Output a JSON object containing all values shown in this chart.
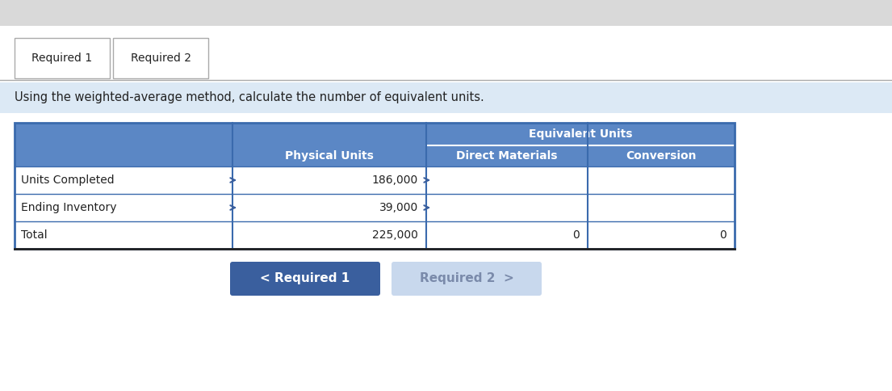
{
  "tab1_label": "Required 1",
  "tab2_label": "Required 2",
  "instruction": "Using the weighted-average method, calculate the number of equivalent units.",
  "col_headers": [
    "",
    "Physical Units",
    "Direct Materials",
    "Conversion"
  ],
  "col_subheader": "Equivalent Units",
  "rows": [
    [
      "Units Completed",
      "186,000",
      "",
      ""
    ],
    [
      "Ending Inventory",
      "39,000",
      "",
      ""
    ],
    [
      "Total",
      "225,000",
      "0",
      "0"
    ]
  ],
  "btn1_label": "< Required 1",
  "btn2_label": "Required 2  >",
  "bg_top": "#d9d9d9",
  "bg_page": "#ffffff",
  "bg_instruction": "#dce9f5",
  "tab_border": "#aaaaaa",
  "tab_active_bg": "#ffffff",
  "tab_inactive_bg": "#eeeeee",
  "table_header_bg": "#5b87c5",
  "table_header_text": "#ffffff",
  "table_border": "#3a6aad",
  "table_row_bg": "#ffffff",
  "table_total_border": "#222222",
  "btn1_bg": "#3a5f9e",
  "btn1_text": "#ffffff",
  "btn2_bg": "#c8d8ed",
  "btn2_text": "#7a8aaa",
  "arrow_color": "#3a5f9e",
  "instruction_text_color": "#222222",
  "row_label_color": "#222222",
  "data_color": "#222222"
}
